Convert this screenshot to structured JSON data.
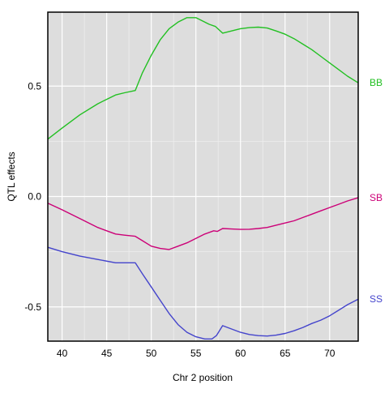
{
  "chart_data": {
    "type": "line",
    "xlabel": "Chr 2 position",
    "ylabel": "QTL effects",
    "xlim": [
      38.4,
      73.2
    ],
    "ylim": [
      -0.655,
      0.835
    ],
    "xticks": [
      40,
      45,
      50,
      55,
      60,
      65,
      70
    ],
    "yticks": [
      -0.5,
      0.0,
      0.5
    ],
    "ytick_labels": [
      "-0.5",
      "0.0",
      "0.5"
    ],
    "grid": true,
    "background": "#dddddd",
    "legend": "labels at right end of each series",
    "series": [
      {
        "name": "BB",
        "color": "#22c022",
        "x": [
          38.4,
          40,
          42,
          44,
          45,
          46,
          47,
          48.2,
          49,
          50,
          51,
          52,
          53,
          54,
          55,
          56,
          56.5,
          57.2,
          58,
          59,
          60,
          61,
          62,
          63,
          64,
          65,
          66,
          67,
          68,
          69,
          70,
          71,
          72,
          73.2
        ],
        "y": [
          0.26,
          0.31,
          0.37,
          0.42,
          0.44,
          0.46,
          0.47,
          0.48,
          0.56,
          0.64,
          0.71,
          0.76,
          0.79,
          0.81,
          0.81,
          0.79,
          0.78,
          0.77,
          0.74,
          0.75,
          0.76,
          0.765,
          0.767,
          0.763,
          0.75,
          0.735,
          0.715,
          0.69,
          0.665,
          0.635,
          0.605,
          0.575,
          0.545,
          0.515
        ]
      },
      {
        "name": "SB",
        "color": "#cc0077",
        "x": [
          38.4,
          40,
          42,
          44,
          45,
          46,
          47,
          48.2,
          49,
          50,
          51,
          52,
          53,
          54,
          55,
          56,
          57,
          57.4,
          58,
          59,
          60,
          61,
          62,
          63,
          64,
          65,
          66,
          67,
          68,
          69,
          70,
          71,
          72,
          73.2
        ],
        "y": [
          -0.03,
          -0.06,
          -0.1,
          -0.14,
          -0.155,
          -0.17,
          -0.175,
          -0.18,
          -0.2,
          -0.225,
          -0.235,
          -0.24,
          -0.225,
          -0.21,
          -0.19,
          -0.17,
          -0.155,
          -0.158,
          -0.145,
          -0.147,
          -0.149,
          -0.148,
          -0.145,
          -0.14,
          -0.13,
          -0.12,
          -0.11,
          -0.095,
          -0.08,
          -0.065,
          -0.05,
          -0.035,
          -0.02,
          -0.005
        ]
      },
      {
        "name": "SS",
        "color": "#4444cc",
        "x": [
          38.4,
          40,
          42,
          44,
          46,
          48.2,
          49,
          50,
          51,
          52,
          53,
          54,
          55,
          56,
          56.8,
          57.3,
          58,
          59,
          60,
          61,
          62,
          63,
          64,
          65,
          66,
          67,
          68,
          69,
          70,
          71,
          72,
          73.2
        ],
        "y": [
          -0.23,
          -0.25,
          -0.27,
          -0.285,
          -0.3,
          -0.3,
          -0.35,
          -0.41,
          -0.47,
          -0.53,
          -0.58,
          -0.615,
          -0.635,
          -0.645,
          -0.645,
          -0.63,
          -0.585,
          -0.6,
          -0.615,
          -0.625,
          -0.63,
          -0.632,
          -0.628,
          -0.62,
          -0.608,
          -0.593,
          -0.575,
          -0.56,
          -0.54,
          -0.515,
          -0.49,
          -0.465
        ]
      }
    ]
  }
}
